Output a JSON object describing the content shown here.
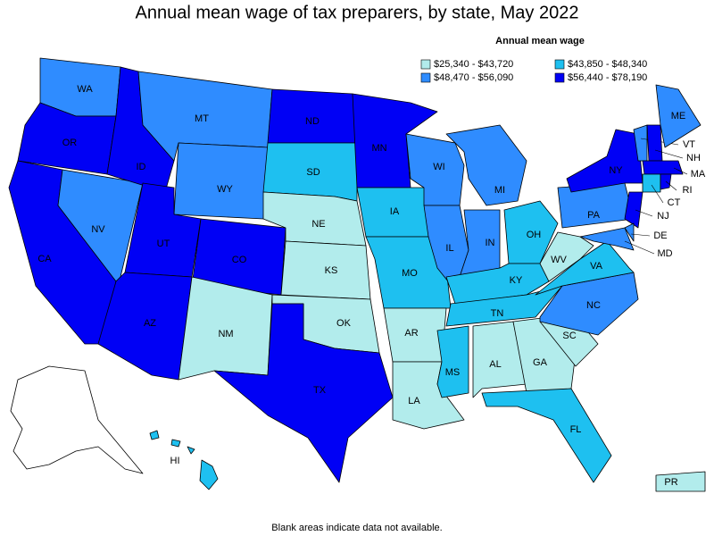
{
  "title": "Annual mean wage of tax preparers, by state, May 2022",
  "legend": {
    "title": "Annual mean wage",
    "items": [
      {
        "label": "$25,340 - $43,720",
        "color": "#b2ecec"
      },
      {
        "label": "$43,850 - $48,340",
        "color": "#1ec0f0"
      },
      {
        "label": "$48,470 - $56,090",
        "color": "#2f8cff"
      },
      {
        "label": "$56,440 - $78,190",
        "color": "#0000f5"
      }
    ]
  },
  "states": [
    {
      "label": "WA",
      "color": "#2f8cff"
    },
    {
      "label": "OR",
      "color": "#0000f5"
    },
    {
      "label": "CA",
      "color": "#0000f5"
    },
    {
      "label": "NV",
      "color": "#2f8cff"
    },
    {
      "label": "ID",
      "color": "#0000f5"
    },
    {
      "label": "MT",
      "color": "#2f8cff"
    },
    {
      "label": "WY",
      "color": "#2f8cff"
    },
    {
      "label": "UT",
      "color": "#0000f5"
    },
    {
      "label": "CO",
      "color": "#0000f5"
    },
    {
      "label": "AZ",
      "color": "#0000f5"
    },
    {
      "label": "NM",
      "color": "#b2ecec"
    },
    {
      "label": "ND",
      "color": "#0000f5"
    },
    {
      "label": "SD",
      "color": "#1ec0f0"
    },
    {
      "label": "NE",
      "color": "#b2ecec"
    },
    {
      "label": "KS",
      "color": "#b2ecec"
    },
    {
      "label": "OK",
      "color": "#b2ecec"
    },
    {
      "label": "TX",
      "color": "#0000f5"
    },
    {
      "label": "MN",
      "color": "#0000f5"
    },
    {
      "label": "IA",
      "color": "#1ec0f0"
    },
    {
      "label": "MO",
      "color": "#1ec0f0"
    },
    {
      "label": "AR",
      "color": "#b2ecec"
    },
    {
      "label": "LA",
      "color": "#b2ecec"
    },
    {
      "label": "WI",
      "color": "#2f8cff"
    },
    {
      "label": "IL",
      "color": "#2f8cff"
    },
    {
      "label": "MI",
      "color": "#2f8cff"
    },
    {
      "label": "IN",
      "color": "#2f8cff"
    },
    {
      "label": "OH",
      "color": "#1ec0f0"
    },
    {
      "label": "KY",
      "color": "#1ec0f0"
    },
    {
      "label": "TN",
      "color": "#1ec0f0"
    },
    {
      "label": "MS",
      "color": "#1ec0f0"
    },
    {
      "label": "AL",
      "color": "#b2ecec"
    },
    {
      "label": "GA",
      "color": "#b2ecec"
    },
    {
      "label": "FL",
      "color": "#1ec0f0"
    },
    {
      "label": "SC",
      "color": "#b2ecec"
    },
    {
      "label": "NC",
      "color": "#2f8cff"
    },
    {
      "label": "VA",
      "color": "#1ec0f0"
    },
    {
      "label": "WV",
      "color": "#b2ecec"
    },
    {
      "label": "PA",
      "color": "#2f8cff"
    },
    {
      "label": "NY",
      "color": "#0000f5"
    },
    {
      "label": "NJ",
      "color": "#0000f5"
    },
    {
      "label": "DE",
      "color": "#2f8cff"
    },
    {
      "label": "MD",
      "color": "#2f8cff"
    },
    {
      "label": "VT",
      "color": "#2f8cff"
    },
    {
      "label": "NH",
      "color": "#0000f5"
    },
    {
      "label": "ME",
      "color": "#2f8cff"
    },
    {
      "label": "MA",
      "color": "#0000f5"
    },
    {
      "label": "CT",
      "color": "#1ec0f0"
    },
    {
      "label": "RI",
      "color": "#0000f5"
    },
    {
      "label": "HI",
      "color": "#1ec0f0"
    },
    {
      "label": "PR",
      "color": "#b2ecec"
    }
  ],
  "note": "Blank areas indicate data not available."
}
